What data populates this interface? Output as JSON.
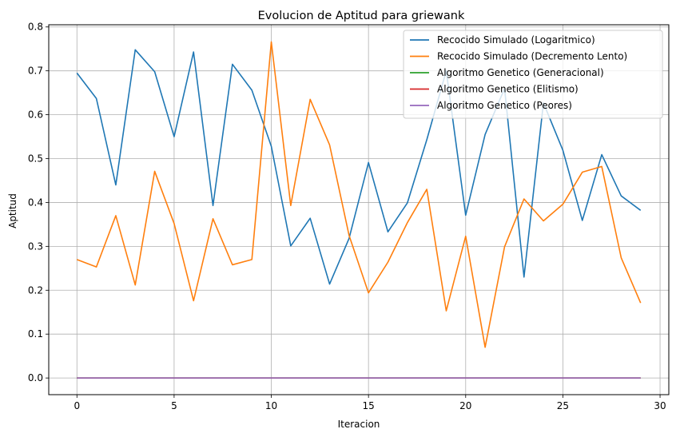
{
  "chart_data": {
    "type": "line",
    "title": "Evolucion de Aptitud para griewank",
    "xlabel": "Iteracion",
    "ylabel": "Aptitud",
    "xlim": [
      -1.45,
      30.45
    ],
    "ylim": [
      -0.038,
      0.805
    ],
    "xticks": [
      0,
      5,
      10,
      15,
      20,
      25,
      30
    ],
    "yticks": [
      0.0,
      0.1,
      0.2,
      0.3,
      0.4,
      0.5,
      0.6,
      0.7,
      0.8
    ],
    "xtick_labels": [
      "0",
      "5",
      "10",
      "15",
      "20",
      "25",
      "30"
    ],
    "ytick_labels": [
      "0.0",
      "0.1",
      "0.2",
      "0.3",
      "0.4",
      "0.5",
      "0.6",
      "0.7",
      "0.8"
    ],
    "grid": true,
    "legend_position": "top-right",
    "x": [
      0,
      1,
      2,
      3,
      4,
      5,
      6,
      7,
      8,
      9,
      10,
      11,
      12,
      13,
      14,
      15,
      16,
      17,
      18,
      19,
      20,
      21,
      22,
      23,
      24,
      25,
      26,
      27,
      28,
      29
    ],
    "series": [
      {
        "name": "Recocido Simulado (Logaritmico)",
        "color": "#1f77b4",
        "values": [
          0.695,
          0.637,
          0.44,
          0.748,
          0.698,
          0.55,
          0.743,
          0.393,
          0.715,
          0.656,
          0.528,
          0.301,
          0.364,
          0.214,
          0.318,
          0.491,
          0.333,
          0.399,
          0.543,
          0.7,
          0.371,
          0.555,
          0.66,
          0.23,
          0.627,
          0.519,
          0.359,
          0.509,
          0.415,
          0.382
        ]
      },
      {
        "name": "Recocido Simulado (Decremento Lento)",
        "color": "#ff7f0e",
        "values": [
          0.27,
          0.253,
          0.37,
          0.212,
          0.471,
          0.352,
          0.176,
          0.363,
          0.258,
          0.27,
          0.766,
          0.393,
          0.635,
          0.531,
          0.325,
          0.194,
          0.264,
          0.354,
          0.43,
          0.153,
          0.323,
          0.07,
          0.299,
          0.408,
          0.358,
          0.396,
          0.469,
          0.482,
          0.274,
          0.171
        ]
      },
      {
        "name": "Algoritmo Genetico (Generacional)",
        "color": "#2ca02c",
        "values": [
          0,
          0,
          0,
          0,
          0,
          0,
          0,
          0,
          0,
          0,
          0,
          0,
          0,
          0,
          0,
          0,
          0,
          0,
          0,
          0,
          0,
          0,
          0,
          0,
          0,
          0,
          0,
          0,
          0,
          0
        ]
      },
      {
        "name": "Algoritmo Genetico (Elitismo)",
        "color": "#d62728",
        "values": [
          0,
          0,
          0,
          0,
          0,
          0,
          0,
          0,
          0,
          0,
          0,
          0,
          0,
          0,
          0,
          0,
          0,
          0,
          0,
          0,
          0,
          0,
          0,
          0,
          0,
          0,
          0,
          0,
          0,
          0
        ]
      },
      {
        "name": "Algoritmo Genetico (Peores)",
        "color": "#9467bd",
        "values": [
          0,
          0,
          0,
          0,
          0,
          0,
          0,
          0,
          0,
          0,
          0,
          0,
          0,
          0,
          0,
          0,
          0,
          0,
          0,
          0,
          0,
          0,
          0,
          0,
          0,
          0,
          0,
          0,
          0,
          0
        ]
      }
    ]
  }
}
